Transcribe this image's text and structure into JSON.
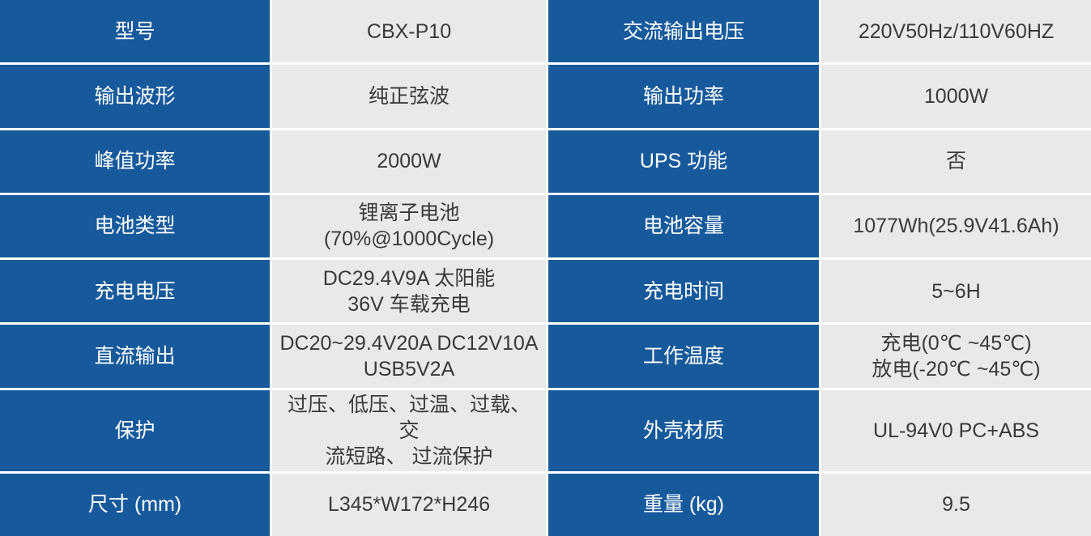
{
  "colors": {
    "label_background": "#175A9C",
    "value_background": "#E9E9E9",
    "grid_line": "#FFFFFF",
    "label_text": "#FFFFFF",
    "value_text": "#3A3A3A"
  },
  "table": {
    "rows": [
      [
        "型号",
        "CBX-P10",
        "交流输出电压",
        "220V50Hz/110V60HZ"
      ],
      [
        "输出波形",
        "纯正弦波",
        "输出功率",
        "1000W"
      ],
      [
        "峰值功率",
        "2000W",
        "UPS  功能",
        "否"
      ],
      [
        "电池类型",
        "锂离子电池\n(70%@1000Cycle)",
        "电池容量",
        "1077Wh(25.9V41.6Ah)"
      ],
      [
        "充电电压",
        "DC29.4V9A  太阳能\n36V  车载充电",
        "充电时间",
        "5~6H"
      ],
      [
        "直流输出",
        "DC20~29.4V20A DC12V10A\nUSB5V2A",
        "工作温度",
        "充电(0℃ ~45℃)\n放电(-20℃ ~45℃)"
      ],
      [
        "保护",
        "过压、低压、过温、过载、 交\n流短路、 过流保护",
        "外壳材质",
        "UL-94V0 PC+ABS"
      ],
      [
        "尺寸  (mm)",
        "L345*W172*H246",
        "重量  (kg)",
        "9.5"
      ]
    ]
  }
}
